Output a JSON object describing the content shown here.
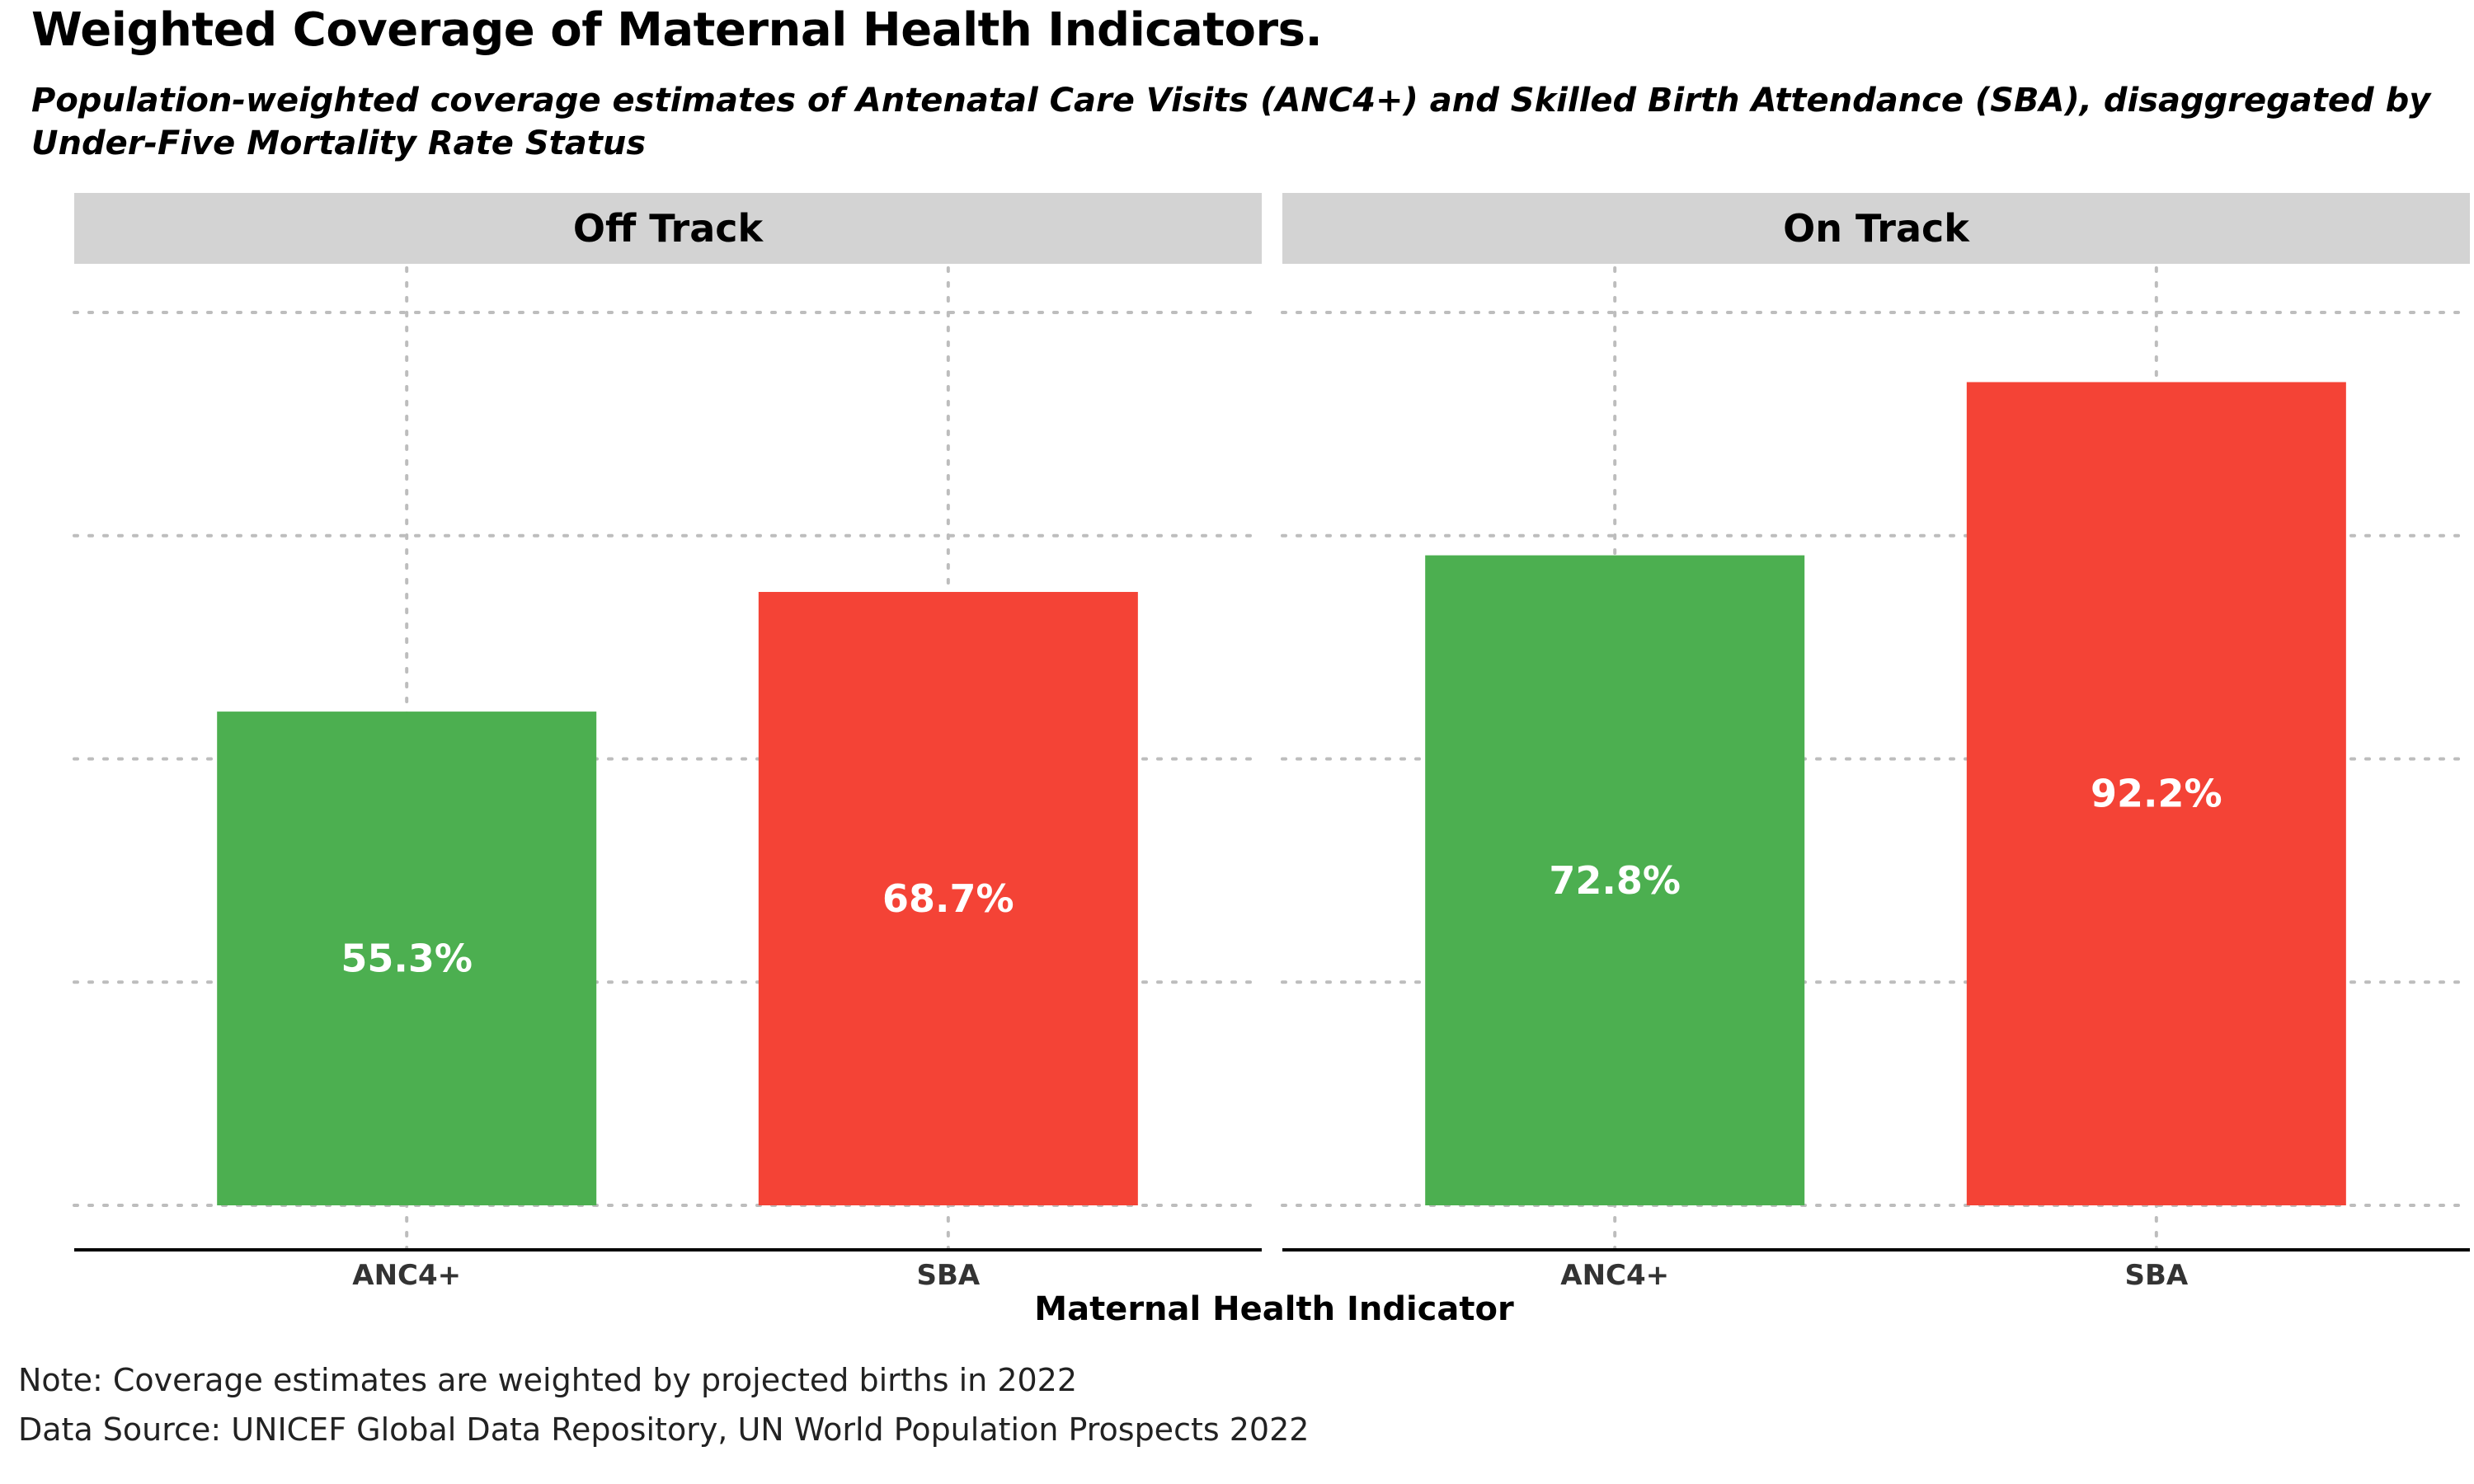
{
  "header": {
    "title": "Weighted Coverage of Maternal Health Indicators.",
    "subtitle": "Population-weighted coverage estimates of Antenatal Care Visits (ANC4+) and Skilled Birth Attendance (SBA), disaggregated by Under-Five Mortality Rate Status"
  },
  "chart_data": {
    "type": "bar",
    "xlabel": "Maternal Health Indicator",
    "ylabel": "",
    "ylim": [
      0,
      100
    ],
    "grid": true,
    "categories": [
      "ANC4+",
      "SBA"
    ],
    "colors": {
      "ANC4+": "#4caf50",
      "SBA": "#f44336"
    },
    "panels": [
      {
        "label": "Off Track",
        "values": [
          55.3,
          68.7
        ],
        "value_labels": [
          "55.3%",
          "68.7%"
        ]
      },
      {
        "label": "On Track",
        "values": [
          72.8,
          92.2
        ],
        "value_labels": [
          "72.8%",
          "92.2%"
        ]
      }
    ]
  },
  "footer": {
    "note": "Note: Coverage estimates are weighted by projected births in 2022",
    "source": "Data Source: UNICEF Global Data Repository, UN World Population Prospects 2022"
  }
}
